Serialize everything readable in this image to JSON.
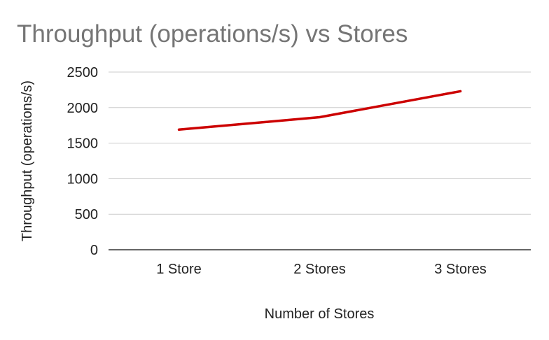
{
  "chart_data": {
    "type": "line",
    "title": "Throughput (operations/s) vs Stores",
    "xlabel": "Number of Stores",
    "ylabel": "Throughput (operations/s)",
    "categories": [
      "1 Store",
      "2 Stores",
      "3 Stores"
    ],
    "series": [
      {
        "values": [
          1690,
          1865,
          2230
        ],
        "color": "#cc0000"
      }
    ],
    "ylim": [
      0,
      2500
    ],
    "yticks": [
      "0",
      "500",
      "1000",
      "1500",
      "2000",
      "2500"
    ],
    "grid": true,
    "legend": "none"
  }
}
